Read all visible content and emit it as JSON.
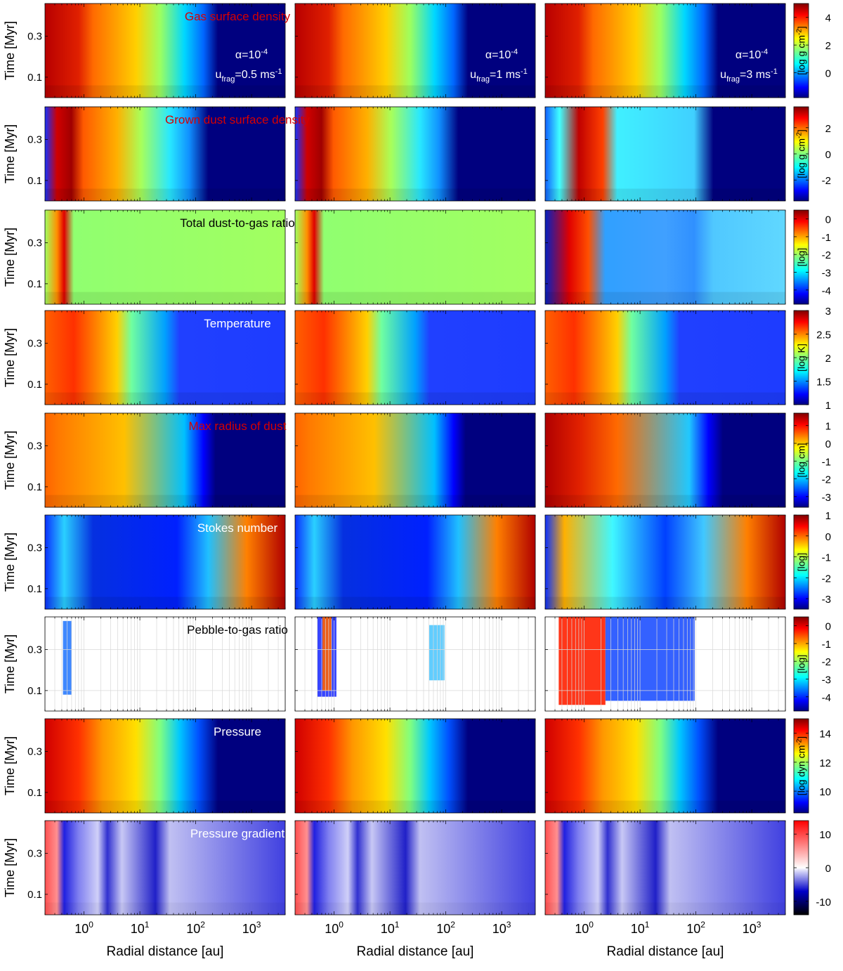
{
  "chart_data": {
    "type": "heatmap",
    "xlabel": "Radial distance [au]",
    "ylabel": "Time [Myr]",
    "x_scale": "log",
    "xlim": [
      0.2,
      4000
    ],
    "x_ticks": [
      1,
      10,
      100,
      1000
    ],
    "x_tick_labels": [
      {
        "base": "10",
        "exp": "0"
      },
      {
        "base": "10",
        "exp": "1"
      },
      {
        "base": "10",
        "exp": "2"
      },
      {
        "base": "10",
        "exp": "3"
      }
    ],
    "ylim": [
      0.0,
      0.46
    ],
    "y_ticks": [
      0.1,
      0.3
    ],
    "y_tick_labels": [
      "0.1",
      "0.3"
    ],
    "columns": [
      {
        "alpha_base": "α=10",
        "alpha_exp": "-4",
        "ufrag_sym": "u",
        "ufrag_sub": "frag",
        "ufrag_value": "=0.5 ms",
        "ufrag_unit_exp": "-1"
      },
      {
        "alpha_base": "α=10",
        "alpha_exp": "-4",
        "ufrag_sym": "u",
        "ufrag_sub": "frag",
        "ufrag_value": "=1 ms",
        "ufrag_unit_exp": "-1"
      },
      {
        "alpha_base": "α=10",
        "alpha_exp": "-4",
        "ufrag_sym": "u",
        "ufrag_sub": "frag",
        "ufrag_value": "=3 ms",
        "ufrag_unit_exp": "-1"
      }
    ],
    "rows": [
      {
        "quantity": "Gas surface density",
        "label_color": "#d60000",
        "colorbar_unit": "[log g cm",
        "colorbar_exp": "-2",
        "colorbar_close": "]",
        "colorbar_ticks": [
          4,
          2,
          0
        ],
        "clim": [
          -1.8,
          5
        ],
        "colormap": "jet"
      },
      {
        "quantity": "Grown dust surface density",
        "label_color": "#d60000",
        "colorbar_unit": "[log g cm",
        "colorbar_exp": "-2",
        "colorbar_close": "]",
        "colorbar_ticks": [
          2,
          0,
          -2
        ],
        "clim": [
          -3.6,
          3.6
        ],
        "colormap": "jet"
      },
      {
        "quantity": "Total dust-to-gas ratio",
        "label_color": "#000000",
        "colorbar_unit": "[log]",
        "colorbar_exp": "",
        "colorbar_close": "",
        "colorbar_ticks": [
          0,
          -1,
          -2,
          -3,
          -4
        ],
        "clim": [
          -4.8,
          0.5
        ],
        "colormap": "jet"
      },
      {
        "quantity": "Temperature",
        "label_color": "#ffffff",
        "colorbar_unit": "[log K]",
        "colorbar_exp": "",
        "colorbar_close": "",
        "colorbar_ticks": [
          3,
          2.5,
          2,
          1.5,
          1
        ],
        "clim": [
          1,
          3
        ],
        "colormap": "jet"
      },
      {
        "quantity": "Max radius of dust",
        "label_color": "#d60000",
        "colorbar_unit": "[log cm]",
        "colorbar_exp": "",
        "colorbar_close": "",
        "colorbar_ticks": [
          1,
          0,
          -1,
          -2,
          -3
        ],
        "clim": [
          -3.6,
          1.7
        ],
        "colormap": "jet"
      },
      {
        "quantity": "Stokes number",
        "label_color": "#ffffff",
        "colorbar_unit": "[log]",
        "colorbar_exp": "",
        "colorbar_close": "",
        "colorbar_ticks": [
          1,
          0,
          -1,
          -2,
          -3
        ],
        "clim": [
          -3.5,
          1
        ],
        "colormap": "jet"
      },
      {
        "quantity": "Pebble-to-gas ratio",
        "label_color": "#000000",
        "colorbar_unit": "[log]",
        "colorbar_exp": "",
        "colorbar_close": "",
        "colorbar_ticks": [
          0,
          -1,
          -2,
          -3,
          -4
        ],
        "clim": [
          -4.8,
          0.5
        ],
        "colormap": "jet"
      },
      {
        "quantity": "Pressure",
        "label_color": "#ffffff",
        "colorbar_unit": "[log dyn cm",
        "colorbar_exp": "-2",
        "colorbar_close": "]",
        "colorbar_ticks": [
          14,
          12,
          10
        ],
        "clim": [
          8.5,
          15
        ],
        "colormap": "jet"
      },
      {
        "quantity": "Pressure gradient",
        "label_color": "#ffffff",
        "colorbar_unit": "",
        "colorbar_exp": "",
        "colorbar_close": "",
        "colorbar_ticks": [
          10,
          0,
          -10
        ],
        "clim": [
          -14,
          14
        ],
        "colormap": "diverging"
      }
    ],
    "grid": false
  }
}
